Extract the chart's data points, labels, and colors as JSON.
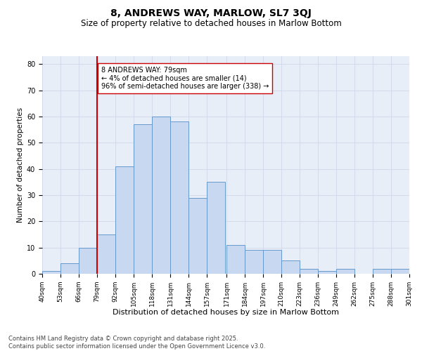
{
  "title1": "8, ANDREWS WAY, MARLOW, SL7 3QJ",
  "title2": "Size of property relative to detached houses in Marlow Bottom",
  "xlabel": "Distribution of detached houses by size in Marlow Bottom",
  "ylabel": "Number of detached properties",
  "bins": [
    40,
    53,
    66,
    79,
    92,
    105,
    118,
    131,
    144,
    157,
    171,
    184,
    197,
    210,
    223,
    236,
    249,
    262,
    275,
    288,
    301
  ],
  "counts": [
    1,
    4,
    10,
    15,
    41,
    57,
    60,
    58,
    29,
    35,
    11,
    9,
    9,
    5,
    2,
    1,
    2,
    0,
    2,
    2
  ],
  "bar_facecolor": "#c8d8f0",
  "bar_edgecolor": "#6699cc",
  "vline_x": 79,
  "vline_color": "#cc0000",
  "annotation_text": "8 ANDREWS WAY: 79sqm\n← 4% of detached houses are smaller (14)\n96% of semi-detached houses are larger (338) →",
  "annotation_box_edgecolor": "#cc0000",
  "annotation_box_facecolor": "#ffffff",
  "ylim": [
    0,
    83
  ],
  "yticks": [
    0,
    10,
    20,
    30,
    40,
    50,
    60,
    70,
    80
  ],
  "grid_color": "#d0d8e8",
  "bg_color": "#e8eef8",
  "footer1": "Contains HM Land Registry data © Crown copyright and database right 2025.",
  "footer2": "Contains public sector information licensed under the Open Government Licence v3.0.",
  "title1_fontsize": 10,
  "title2_fontsize": 8.5,
  "axis_label_fontsize": 7.5,
  "tick_fontsize": 6.5,
  "annotation_fontsize": 7,
  "footer_fontsize": 6
}
